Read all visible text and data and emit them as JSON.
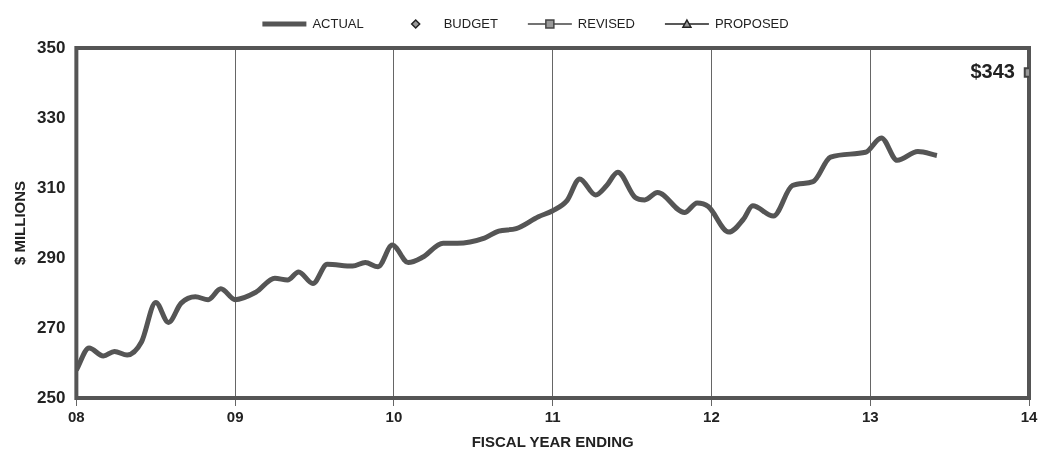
{
  "chart_data": {
    "type": "line",
    "xlabel": "FISCAL YEAR ENDING",
    "ylabel": "$ MILLIONS",
    "xlim": [
      8,
      14
    ],
    "xticks": [
      {
        "value": 8,
        "label": "08"
      },
      {
        "value": 9,
        "label": "09"
      },
      {
        "value": 10,
        "label": "10"
      },
      {
        "value": 11,
        "label": "11"
      },
      {
        "value": 12,
        "label": "12"
      },
      {
        "value": 13,
        "label": "13"
      },
      {
        "value": 14,
        "label": "14"
      }
    ],
    "ylim": [
      250,
      350
    ],
    "yticks": [
      250,
      270,
      290,
      310,
      330,
      350
    ],
    "grid": "x",
    "legend": "top",
    "series": [
      {
        "name": "ACTUAL",
        "color": "#555555",
        "marker": "none",
        "x": [
          8.0,
          8.08,
          8.17,
          8.24,
          8.32,
          8.41,
          8.5,
          8.58,
          8.66,
          8.75,
          8.83,
          8.91,
          9.0,
          9.13,
          9.25,
          9.33,
          9.4,
          9.49,
          9.58,
          9.74,
          9.82,
          9.9,
          9.99,
          10.09,
          10.18,
          10.31,
          10.4,
          10.57,
          10.66,
          10.77,
          10.91,
          11.0,
          11.09,
          11.17,
          11.27,
          11.34,
          11.41,
          11.52,
          11.58,
          11.66,
          11.83,
          11.91,
          11.98,
          12.11,
          12.2,
          12.26,
          12.39,
          12.51,
          12.64,
          12.75,
          12.97,
          13.07,
          13.17,
          13.3,
          13.42
        ],
        "values": [
          258,
          264.3,
          262,
          263.3,
          262.3,
          266,
          277.3,
          271.6,
          277.1,
          278.9,
          278.1,
          281.2,
          278.1,
          280.2,
          284.2,
          283.7,
          286,
          282.7,
          288.2,
          287.7,
          288.7,
          287.5,
          293.7,
          288.7,
          290.2,
          294.2,
          294.2,
          295.7,
          297.7,
          298.4,
          301.8,
          303.5,
          306.4,
          312.6,
          308,
          310.7,
          314.5,
          307.3,
          306.6,
          308.7,
          303,
          305.7,
          304.7,
          297.4,
          301,
          304.9,
          302,
          310.7,
          311.8,
          318.8,
          320.2,
          324.3,
          317.9,
          320.4,
          319.3
        ]
      },
      {
        "name": "BUDGET",
        "type": "scatter",
        "color": "#222222",
        "marker": "diamond"
      },
      {
        "name": "REVISED",
        "color": "#444444",
        "marker": "square",
        "x": [
          14
        ],
        "values": [
          343
        ],
        "value_labels": [
          "$343"
        ]
      },
      {
        "name": "PROPOSED",
        "color": "#222222",
        "marker": "triangle"
      }
    ]
  }
}
